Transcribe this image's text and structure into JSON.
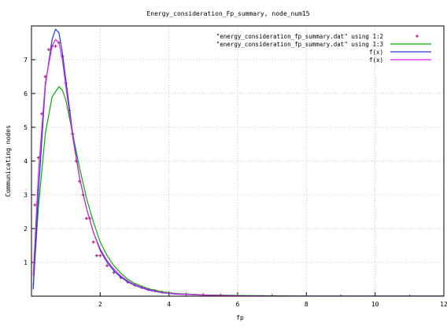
{
  "chart_data": {
    "type": "line",
    "title": "Energy_consideration_Fp_summary, node_num15",
    "xlabel": "fp",
    "ylabel": "Communicating nodes",
    "xlim": [
      0,
      12
    ],
    "ylim": [
      0,
      8
    ],
    "x_ticks": [
      2,
      4,
      6,
      8,
      10,
      12
    ],
    "y_ticks": [
      1,
      2,
      3,
      4,
      5,
      6,
      7
    ],
    "grid": true,
    "legend_position": "top-right",
    "series": [
      {
        "name": "\"energy_consideration_fp_summary.dat\" using 1:2",
        "style": "points",
        "color": "#b4287a",
        "x": [
          0.1,
          0.2,
          0.3,
          0.4,
          0.5,
          0.6,
          0.7,
          0.8,
          0.9,
          1.0,
          1.1,
          1.2,
          1.3,
          1.4,
          1.5,
          1.6,
          1.7,
          1.8,
          1.9,
          2.0,
          2.2,
          2.4,
          2.6,
          2.8,
          3.0,
          3.2,
          3.4,
          3.6,
          3.8,
          4.0,
          4.5,
          5.0,
          5.5,
          6.0,
          7.0,
          8.0,
          9.0,
          10.0,
          11.0
        ],
        "y": [
          2.7,
          4.1,
          5.4,
          6.5,
          7.3,
          7.4,
          7.4,
          7.5,
          7.1,
          6.3,
          5.5,
          4.8,
          4.0,
          3.4,
          3.0,
          2.3,
          2.3,
          1.6,
          1.2,
          1.2,
          0.9,
          0.7,
          0.55,
          0.42,
          0.33,
          0.26,
          0.2,
          0.16,
          0.12,
          0.1,
          0.06,
          0.04,
          0.03,
          0.02,
          0.01,
          0.0,
          0.0,
          0.0,
          0.0
        ]
      },
      {
        "name": "\"energy_consideration_fp_summary.dat\" using 1:3",
        "style": "lines",
        "color": "#00b000",
        "x": [
          0.05,
          0.2,
          0.4,
          0.6,
          0.8,
          0.9,
          1.0,
          1.2,
          1.4,
          1.6,
          1.8,
          2.0,
          2.2,
          2.4,
          2.6,
          2.8,
          3.0,
          3.4,
          3.8,
          4.2,
          5.0,
          6.0,
          7.0,
          8.0,
          10.0,
          12.0
        ],
        "y": [
          0.3,
          2.6,
          4.8,
          5.9,
          6.2,
          6.1,
          5.8,
          4.8,
          3.8,
          2.9,
          2.2,
          1.6,
          1.2,
          0.9,
          0.68,
          0.5,
          0.38,
          0.22,
          0.13,
          0.08,
          0.04,
          0.02,
          0.01,
          0.0,
          0.0,
          0.0
        ]
      },
      {
        "name": "f(x)",
        "style": "lines",
        "color": "#1a3cd8",
        "x": [
          0.05,
          0.2,
          0.4,
          0.6,
          0.7,
          0.8,
          0.9,
          1.0,
          1.2,
          1.4,
          1.6,
          1.8,
          2.0,
          2.2,
          2.4,
          2.6,
          2.8,
          3.0,
          3.4,
          3.8,
          4.2,
          5.0,
          6.0,
          7.0,
          8.0,
          10.0,
          12.0
        ],
        "y": [
          0.2,
          3.0,
          6.2,
          7.6,
          7.9,
          7.8,
          7.2,
          6.4,
          4.8,
          3.5,
          2.6,
          1.9,
          1.35,
          1.0,
          0.75,
          0.56,
          0.42,
          0.32,
          0.18,
          0.1,
          0.06,
          0.03,
          0.01,
          0.0,
          0.0,
          0.0,
          0.0
        ]
      },
      {
        "name": "f(x)",
        "style": "lines",
        "color": "#e020e0",
        "x": [
          0.05,
          0.2,
          0.4,
          0.6,
          0.7,
          0.8,
          0.9,
          1.0,
          1.2,
          1.4,
          1.6,
          1.8,
          2.0,
          2.2,
          2.4,
          2.6,
          2.8,
          3.0,
          3.4,
          3.8,
          4.2,
          5.0,
          6.0,
          7.0,
          8.0,
          10.0,
          12.0
        ],
        "y": [
          0.6,
          3.6,
          6.3,
          7.4,
          7.6,
          7.5,
          7.0,
          6.2,
          4.7,
          3.5,
          2.6,
          1.9,
          1.4,
          1.05,
          0.8,
          0.6,
          0.45,
          0.34,
          0.2,
          0.11,
          0.07,
          0.03,
          0.01,
          0.0,
          0.0,
          0.0,
          0.0
        ]
      }
    ]
  }
}
